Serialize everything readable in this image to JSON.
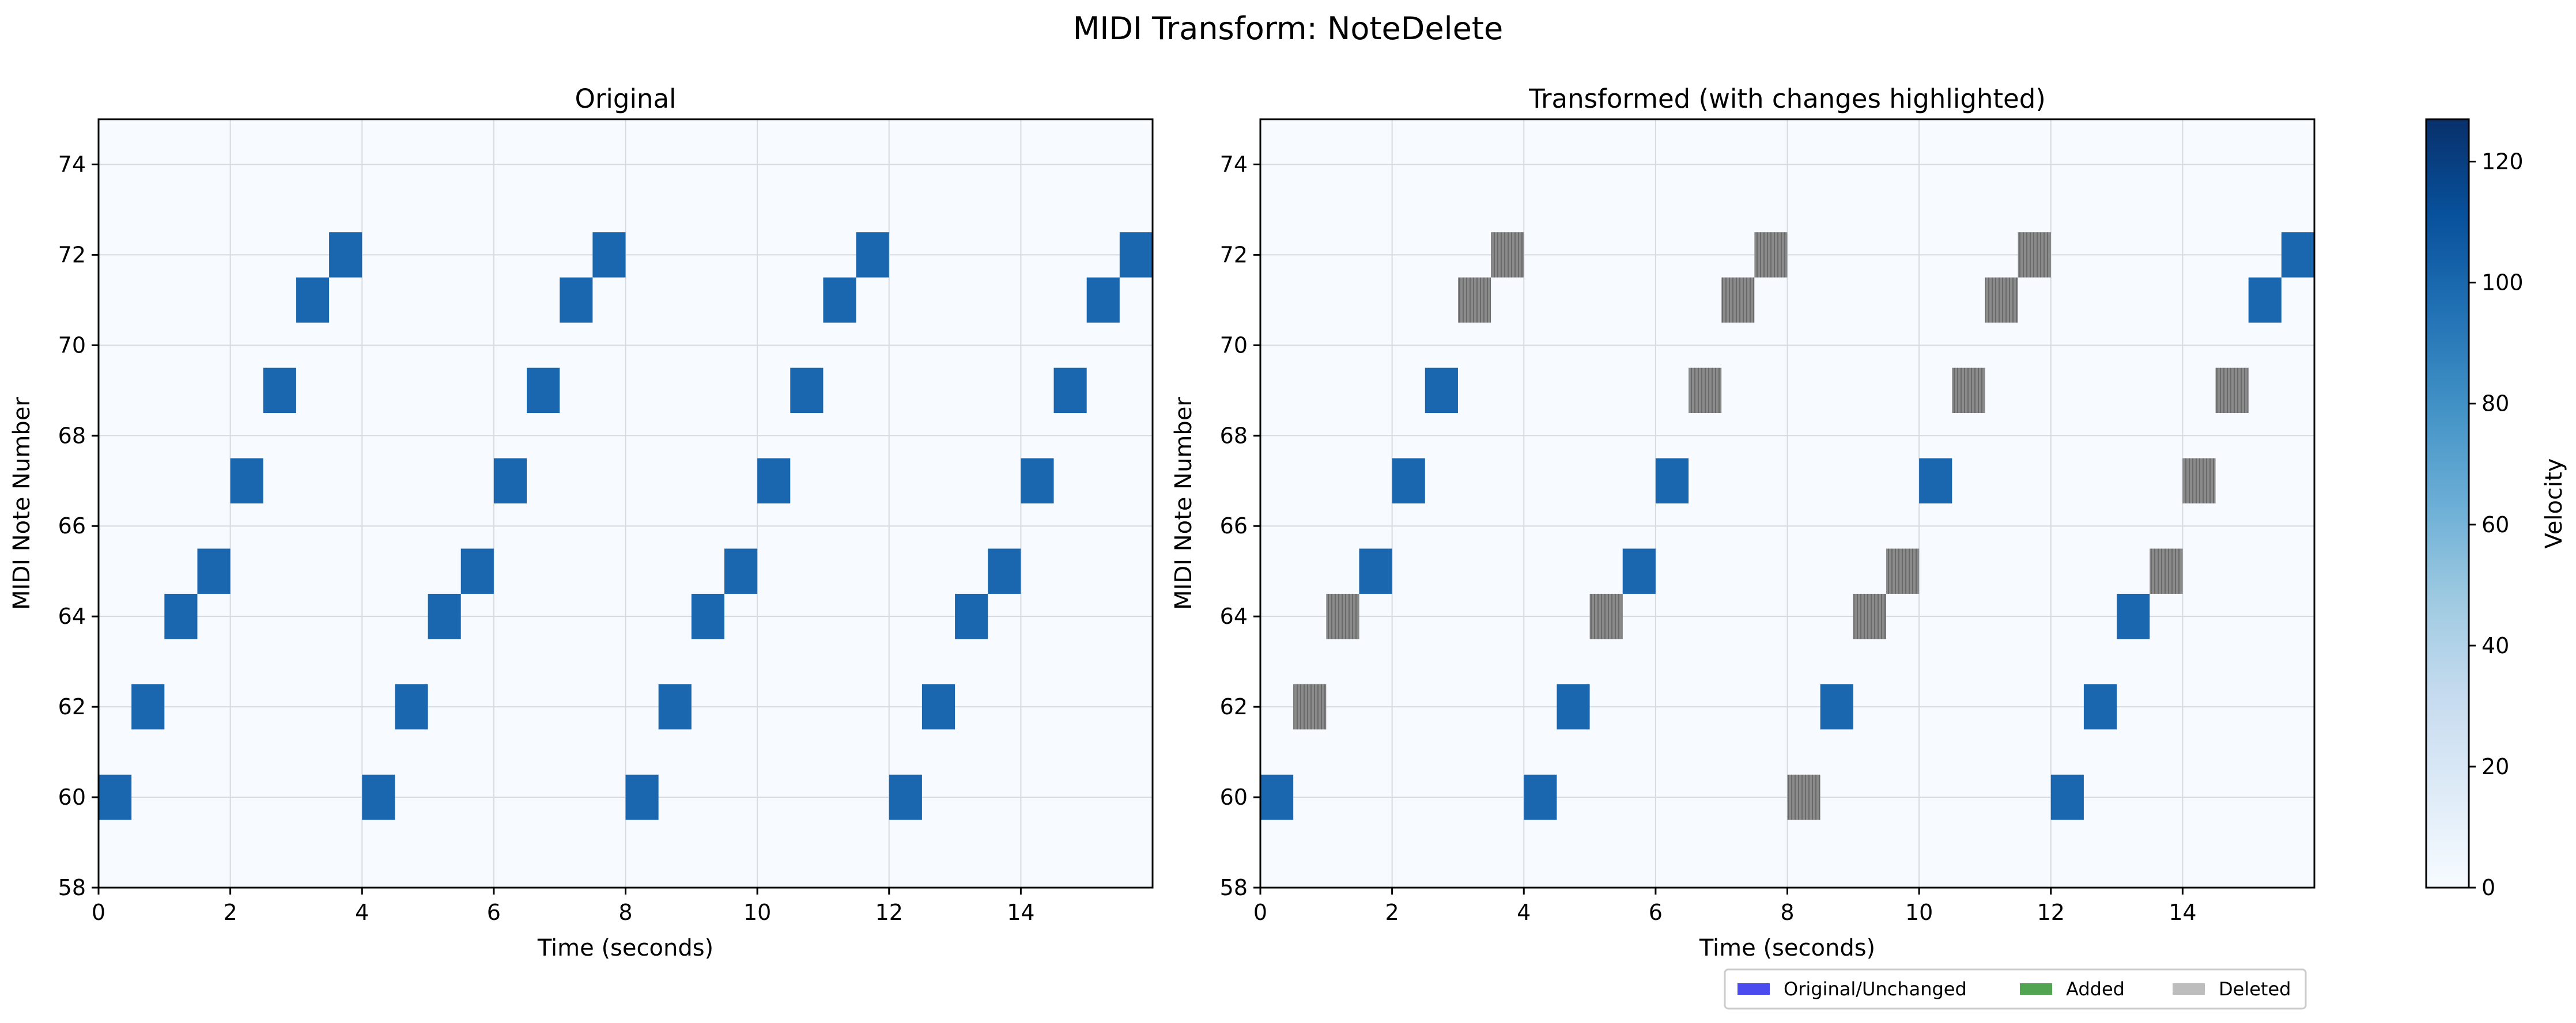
{
  "figure": {
    "title": "MIDI Transform: NoteDelete"
  },
  "colorbar": {
    "label": "Velocity",
    "min": 0,
    "max": 127,
    "ticks": [
      0,
      20,
      40,
      60,
      80,
      100,
      120
    ]
  },
  "legend": {
    "placement": "bottom-right, below right panel",
    "items": [
      {
        "label": "Original/Unchanged",
        "color": "#4b4bf0"
      },
      {
        "label": "Added",
        "color": "#52a452"
      },
      {
        "label": "Deleted",
        "color": "#bdbdbd"
      }
    ]
  },
  "colors": {
    "note": "#1a67b0",
    "deleted_note": "#808080",
    "background": "#f7fbff",
    "grid": "#d6dbe0"
  },
  "chart_data": [
    {
      "type": "heatmap",
      "title": "Original",
      "xlabel": "Time (seconds)",
      "ylabel": "MIDI Note Number",
      "xlim": [
        0,
        16
      ],
      "ylim": [
        58,
        75
      ],
      "xticks": [
        0,
        2,
        4,
        6,
        8,
        10,
        12,
        14
      ],
      "yticks": [
        58,
        60,
        62,
        64,
        66,
        68,
        70,
        72,
        74
      ],
      "grid": true,
      "note_duration": 0.5,
      "velocity": 100,
      "notes": [
        {
          "start": 0.0,
          "pitch": 60
        },
        {
          "start": 0.5,
          "pitch": 62
        },
        {
          "start": 1.0,
          "pitch": 64
        },
        {
          "start": 1.5,
          "pitch": 65
        },
        {
          "start": 2.0,
          "pitch": 67
        },
        {
          "start": 2.5,
          "pitch": 69
        },
        {
          "start": 3.0,
          "pitch": 71
        },
        {
          "start": 3.5,
          "pitch": 72
        },
        {
          "start": 4.0,
          "pitch": 60
        },
        {
          "start": 4.5,
          "pitch": 62
        },
        {
          "start": 5.0,
          "pitch": 64
        },
        {
          "start": 5.5,
          "pitch": 65
        },
        {
          "start": 6.0,
          "pitch": 67
        },
        {
          "start": 6.5,
          "pitch": 69
        },
        {
          "start": 7.0,
          "pitch": 71
        },
        {
          "start": 7.5,
          "pitch": 72
        },
        {
          "start": 8.0,
          "pitch": 60
        },
        {
          "start": 8.5,
          "pitch": 62
        },
        {
          "start": 9.0,
          "pitch": 64
        },
        {
          "start": 9.5,
          "pitch": 65
        },
        {
          "start": 10.0,
          "pitch": 67
        },
        {
          "start": 10.5,
          "pitch": 69
        },
        {
          "start": 11.0,
          "pitch": 71
        },
        {
          "start": 11.5,
          "pitch": 72
        },
        {
          "start": 12.0,
          "pitch": 60
        },
        {
          "start": 12.5,
          "pitch": 62
        },
        {
          "start": 13.0,
          "pitch": 64
        },
        {
          "start": 13.5,
          "pitch": 65
        },
        {
          "start": 14.0,
          "pitch": 67
        },
        {
          "start": 14.5,
          "pitch": 69
        },
        {
          "start": 15.0,
          "pitch": 71
        },
        {
          "start": 15.5,
          "pitch": 72
        }
      ]
    },
    {
      "type": "heatmap",
      "title": "Transformed (with changes highlighted)",
      "xlabel": "Time (seconds)",
      "ylabel": "MIDI Note Number",
      "xlim": [
        0,
        16
      ],
      "ylim": [
        58,
        75
      ],
      "xticks": [
        0,
        2,
        4,
        6,
        8,
        10,
        12,
        14
      ],
      "yticks": [
        58,
        60,
        62,
        64,
        66,
        68,
        70,
        72,
        74
      ],
      "grid": true,
      "note_duration": 0.5,
      "velocity": 100,
      "notes": [
        {
          "start": 0.0,
          "pitch": 60,
          "status": "unchanged"
        },
        {
          "start": 0.5,
          "pitch": 62,
          "status": "deleted"
        },
        {
          "start": 1.0,
          "pitch": 64,
          "status": "deleted"
        },
        {
          "start": 1.5,
          "pitch": 65,
          "status": "unchanged"
        },
        {
          "start": 2.0,
          "pitch": 67,
          "status": "unchanged"
        },
        {
          "start": 2.5,
          "pitch": 69,
          "status": "unchanged"
        },
        {
          "start": 3.0,
          "pitch": 71,
          "status": "deleted"
        },
        {
          "start": 3.5,
          "pitch": 72,
          "status": "deleted"
        },
        {
          "start": 4.0,
          "pitch": 60,
          "status": "unchanged"
        },
        {
          "start": 4.5,
          "pitch": 62,
          "status": "unchanged"
        },
        {
          "start": 5.0,
          "pitch": 64,
          "status": "deleted"
        },
        {
          "start": 5.5,
          "pitch": 65,
          "status": "unchanged"
        },
        {
          "start": 6.0,
          "pitch": 67,
          "status": "unchanged"
        },
        {
          "start": 6.5,
          "pitch": 69,
          "status": "deleted"
        },
        {
          "start": 7.0,
          "pitch": 71,
          "status": "deleted"
        },
        {
          "start": 7.5,
          "pitch": 72,
          "status": "deleted"
        },
        {
          "start": 8.0,
          "pitch": 60,
          "status": "deleted"
        },
        {
          "start": 8.5,
          "pitch": 62,
          "status": "unchanged"
        },
        {
          "start": 9.0,
          "pitch": 64,
          "status": "deleted"
        },
        {
          "start": 9.5,
          "pitch": 65,
          "status": "deleted"
        },
        {
          "start": 10.0,
          "pitch": 67,
          "status": "unchanged"
        },
        {
          "start": 10.5,
          "pitch": 69,
          "status": "deleted"
        },
        {
          "start": 11.0,
          "pitch": 71,
          "status": "deleted"
        },
        {
          "start": 11.5,
          "pitch": 72,
          "status": "deleted"
        },
        {
          "start": 12.0,
          "pitch": 60,
          "status": "unchanged"
        },
        {
          "start": 12.5,
          "pitch": 62,
          "status": "unchanged"
        },
        {
          "start": 13.0,
          "pitch": 64,
          "status": "unchanged"
        },
        {
          "start": 13.5,
          "pitch": 65,
          "status": "deleted"
        },
        {
          "start": 14.0,
          "pitch": 67,
          "status": "deleted"
        },
        {
          "start": 14.5,
          "pitch": 69,
          "status": "deleted"
        },
        {
          "start": 15.0,
          "pitch": 71,
          "status": "unchanged"
        },
        {
          "start": 15.5,
          "pitch": 72,
          "status": "unchanged"
        }
      ]
    }
  ]
}
